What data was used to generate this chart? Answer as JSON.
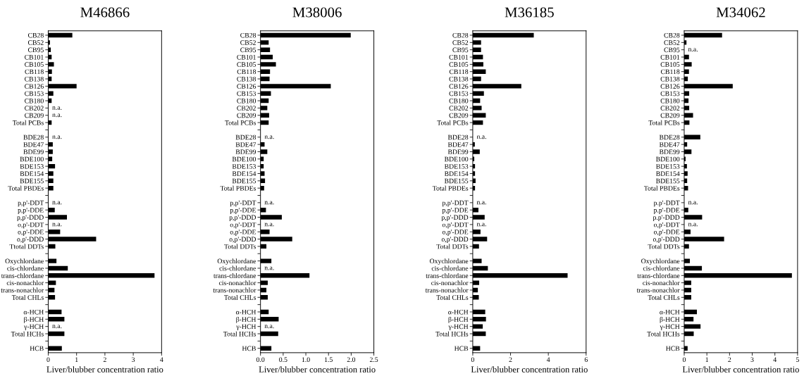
{
  "chart_data": [
    {
      "type": "bar",
      "orientation": "horizontal",
      "title": "M46866",
      "xlabel": "Liver/blubber concentration ratio",
      "color": "#000000",
      "grid": false,
      "categories": [
        "CB28",
        "CB52",
        "CB95",
        "CB101",
        "CB105",
        "CB118",
        "CB138",
        "CB126",
        "CB153",
        "CB180",
        "CB202",
        "CB209",
        "Total PCBs",
        null,
        "BDE28",
        "BDE47",
        "BDE99",
        "BDE100",
        "BDE153",
        "BDE154",
        "BDE155",
        "Total PBDEs",
        null,
        "p,p'-DDT",
        "p,p'-DDE",
        "p,p'-DDD",
        "o,p'-DDT",
        "o,p'-DDE",
        "o,p'-DDD",
        "Ttotal DDTs",
        null,
        "Oxychlordane",
        "cis-chlordane",
        "trans-chlordane",
        "cis-nonachlor",
        "trans-nonachlor",
        "Total CHLs",
        null,
        "α-HCH",
        "β-HCH",
        "γ-HCH",
        "Total HCHs",
        null,
        "HCB"
      ],
      "values": [
        0.85,
        0.06,
        0.09,
        0.12,
        0.2,
        0.13,
        0.12,
        1.0,
        0.18,
        0.12,
        null,
        null,
        0.12,
        null,
        null,
        0.16,
        0.16,
        0.14,
        0.24,
        0.18,
        0.18,
        0.18,
        null,
        null,
        0.23,
        0.66,
        null,
        0.42,
        1.69,
        0.25,
        null,
        0.29,
        0.69,
        3.75,
        0.27,
        0.22,
        0.24,
        null,
        0.47,
        0.57,
        null,
        0.57,
        null,
        0.48
      ],
      "value_labels": [
        null,
        null,
        null,
        null,
        null,
        null,
        null,
        null,
        null,
        null,
        "n.a.",
        "n.a.",
        null,
        null,
        "n.a.",
        null,
        null,
        null,
        null,
        null,
        null,
        null,
        null,
        "n.a.",
        null,
        null,
        "n.a.",
        null,
        null,
        null,
        null,
        null,
        null,
        null,
        null,
        null,
        null,
        null,
        null,
        null,
        "n.a.",
        null,
        null,
        null
      ],
      "xlim": [
        0,
        4
      ],
      "xticks": [
        0,
        1,
        2,
        3,
        4
      ]
    },
    {
      "type": "bar",
      "orientation": "horizontal",
      "title": "M38006",
      "xlabel": "Liver/blubber concentration ratio",
      "color": "#000000",
      "grid": false,
      "categories": [
        "CB28",
        "CB52",
        "CB95",
        "CB101",
        "CB105",
        "CB118",
        "CB138",
        "CB126",
        "CB153",
        "CB180",
        "CB202",
        "CB209",
        "Total PCBs",
        null,
        "BDE28",
        "BDE47",
        "BDE99",
        "BDE100",
        "BDE153",
        "BDE154",
        "BDE155",
        "Total PBDEs",
        null,
        "p,p'-DDT",
        "p,p'-DDE",
        "p,p'-DDD",
        "o,p'-DDT",
        "o,p'-DDE",
        "o,p'-DDD",
        "Total DDTs",
        null,
        "Oxychlordane",
        "cis-chlordane",
        "trans-chlordane",
        "cis-nonachlor",
        "trans-nonachlor",
        "Total CHLs",
        null,
        "α-HCH",
        "β-HCH",
        "γ-HCH",
        "Total HCHs",
        null,
        "HCB"
      ],
      "values": [
        1.99,
        0.18,
        0.21,
        0.27,
        0.34,
        0.21,
        0.2,
        1.55,
        0.23,
        0.18,
        0.15,
        0.19,
        0.18,
        null,
        null,
        0.09,
        0.15,
        0.07,
        0.07,
        0.09,
        0.1,
        0.08,
        null,
        null,
        0.12,
        0.47,
        null,
        0.2,
        0.7,
        0.13,
        null,
        0.24,
        null,
        1.08,
        0.16,
        0.13,
        0.16,
        null,
        0.18,
        0.4,
        null,
        0.39,
        null,
        0.24
      ],
      "value_labels": [
        null,
        null,
        null,
        null,
        null,
        null,
        null,
        null,
        null,
        null,
        null,
        null,
        null,
        null,
        "n.a.",
        null,
        null,
        null,
        null,
        null,
        null,
        null,
        null,
        "n.a.",
        null,
        null,
        "n.a.",
        null,
        null,
        null,
        null,
        null,
        "n.a.",
        null,
        null,
        null,
        null,
        null,
        null,
        null,
        "n.a.",
        null,
        null,
        null
      ],
      "xlim": [
        0,
        2.5
      ],
      "xticks": [
        {
          "value": 0,
          "label": "0.0"
        },
        0.5,
        {
          "value": 1,
          "label": "1.0"
        },
        1.5,
        {
          "value": 2,
          "label": "2.0"
        },
        2.5
      ]
    },
    {
      "type": "bar",
      "orientation": "horizontal",
      "title": "M36185",
      "xlabel": "Liver/blubber concentration ratio",
      "color": "#000000",
      "grid": false,
      "categories": [
        "CB28",
        "CB52",
        "CB95",
        "CB101",
        "CB105",
        "CB118",
        "CB138",
        "CB126",
        "CB153",
        "CB180",
        "CB202",
        "CB209",
        "Total PCBs",
        null,
        "BDE28",
        "BDE47",
        "BDE99",
        "BDE100",
        "BDE153",
        "BDE154",
        "BDE155",
        "Total PBDEs",
        null,
        "p,p'-DDT",
        "p,p'-DDE",
        "p,p'-DDD",
        "o,p'-DDT",
        "o,p'-DDE",
        "o,p'-DDD",
        "Total DDTs",
        null,
        "Oxychlordane",
        "cis-chlordane",
        "trans-chlordane",
        "cis-nonachlor",
        "trans-nonachlor",
        "Total CHLs",
        null,
        "α-HCH",
        "β-HCH",
        "γ-HCH",
        "Total HCHs",
        null,
        "HCB"
      ],
      "values": [
        3.23,
        0.44,
        0.44,
        0.54,
        0.56,
        0.69,
        0.44,
        2.57,
        0.59,
        0.39,
        0.47,
        0.69,
        0.54,
        null,
        null,
        0.11,
        0.37,
        0.08,
        0.12,
        0.12,
        0.15,
        0.12,
        null,
        null,
        0.3,
        0.63,
        null,
        0.41,
        0.76,
        0.33,
        null,
        0.47,
        0.8,
        5.02,
        0.34,
        0.27,
        0.32,
        null,
        0.66,
        0.7,
        0.53,
        0.69,
        null,
        0.39
      ],
      "value_labels": [
        null,
        null,
        null,
        null,
        null,
        null,
        null,
        null,
        null,
        null,
        null,
        null,
        null,
        null,
        "n.a.",
        null,
        null,
        null,
        null,
        null,
        null,
        null,
        null,
        "n.a.",
        null,
        null,
        "n.a.",
        null,
        null,
        null,
        null,
        null,
        null,
        null,
        null,
        null,
        null,
        null,
        null,
        null,
        null,
        null,
        null,
        null
      ],
      "xlim": [
        0,
        6
      ],
      "xticks": [
        0,
        2,
        4,
        6
      ]
    },
    {
      "type": "bar",
      "orientation": "horizontal",
      "title": "M34062",
      "xlabel": "Liver/blubber concentration ratio",
      "color": "#000000",
      "grid": false,
      "categories": [
        "CB28",
        "CB52",
        "CB95",
        "CB101",
        "CB105",
        "CB118",
        "CB138",
        "CB126",
        "CB153",
        "CB180",
        "CB202",
        "CB209",
        "Total PCBs",
        null,
        "BDE28",
        "BDE47",
        "BDE99",
        "BDE100",
        "BDE153",
        "BDE154",
        "BDE155",
        "Total PBDEs",
        null,
        "p.p'-DDT",
        "p.p'-DDE",
        "p.p'-DDD",
        "o,p'-DDT",
        "o,p'-DDE",
        "o,p'-DDD",
        "Total DDTs",
        null,
        "Oxychlordane",
        "cis-chlordane",
        "trans-chlordane",
        "cis-nonachlor",
        "trans-nonachlor",
        "Total CHLs",
        null,
        "α-HCH",
        "β-HCH",
        "γ-HCH",
        "Total HCHs",
        null,
        "HCB"
      ],
      "values": [
        1.67,
        0.1,
        null,
        0.21,
        0.33,
        0.21,
        0.16,
        2.14,
        0.22,
        0.19,
        0.22,
        0.39,
        0.23,
        null,
        0.71,
        0.13,
        0.32,
        0.06,
        0.12,
        0.15,
        0.13,
        0.17,
        null,
        null,
        0.18,
        0.79,
        null,
        0.28,
        1.76,
        0.21,
        null,
        0.25,
        0.78,
        4.75,
        0.31,
        0.31,
        0.31,
        null,
        0.56,
        0.41,
        0.72,
        0.42,
        null,
        0.15
      ],
      "value_labels": [
        null,
        null,
        "n.a.",
        null,
        null,
        null,
        null,
        null,
        null,
        null,
        null,
        null,
        null,
        null,
        null,
        null,
        null,
        null,
        null,
        null,
        null,
        null,
        null,
        "n.a.",
        null,
        null,
        "n.a.",
        null,
        null,
        null,
        null,
        null,
        null,
        null,
        null,
        null,
        null,
        null,
        null,
        null,
        null,
        null,
        null,
        null
      ],
      "xlim": [
        0,
        5
      ],
      "xticks": [
        0,
        1,
        2,
        3,
        4,
        5
      ]
    }
  ]
}
